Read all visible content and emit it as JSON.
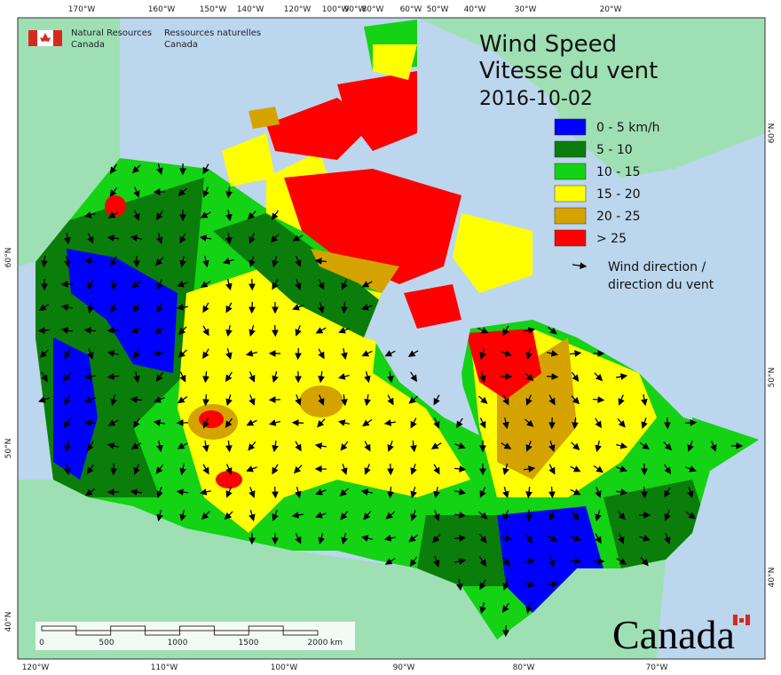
{
  "agency": {
    "english": [
      "Natural Resources",
      "Canada"
    ],
    "french": [
      "Ressources naturelles",
      "Canada"
    ]
  },
  "title": [
    "Wind Speed",
    "Vitesse du vent"
  ],
  "date": "2016-10-02",
  "legend": {
    "items": [
      {
        "label": "0 - 5 km/h",
        "color": "#0000ff"
      },
      {
        "label": "5 - 10",
        "color": "#0a7d0a"
      },
      {
        "label": "10 - 15",
        "color": "#14d214"
      },
      {
        "label": "15 - 20",
        "color": "#ffff00"
      },
      {
        "label": "20 - 25",
        "color": "#d4a300"
      },
      {
        "label": "> 25",
        "color": "#ff0000"
      }
    ],
    "arrow_label": [
      "Wind direction /",
      "direction du vent"
    ]
  },
  "graticule": {
    "top": [
      "170°W",
      "160°W",
      "150°W",
      "140°W",
      "120°W",
      "100°W",
      "90°W",
      "80°W",
      "60°W",
      "50°W",
      "40°W",
      "30°W",
      "20°W"
    ],
    "bottom": [
      "120°W",
      "110°W",
      "100°W",
      "90°W",
      "80°W",
      "70°W"
    ],
    "left": [
      "60°N",
      "50°N",
      "40°N"
    ],
    "right": [
      "60°N",
      "50°N",
      "40°N"
    ]
  },
  "scale_bar": {
    "labels": [
      "0",
      "500",
      "1000",
      "1500",
      "2000"
    ],
    "unit": "km"
  },
  "wordmark": "Canada"
}
